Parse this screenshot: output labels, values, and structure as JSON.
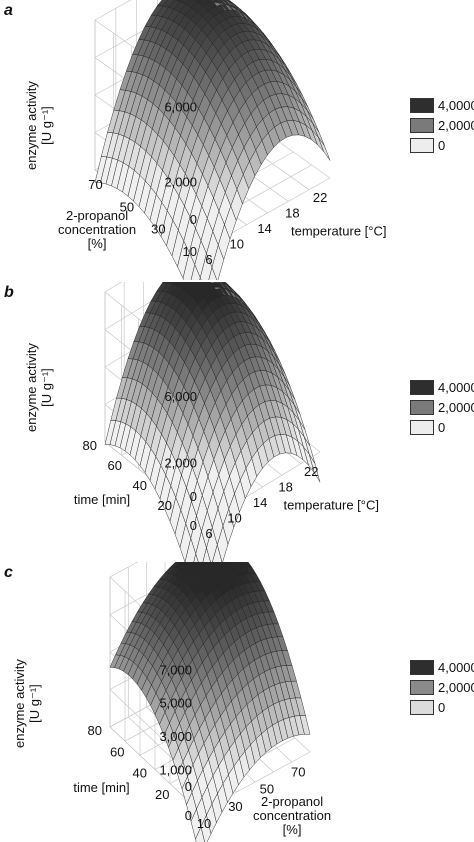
{
  "chart_data": [
    {
      "type": "surface",
      "panel_label": "a",
      "xlabel": "temperature [°C]",
      "ylabel_line1": "enzyme activity",
      "ylabel_line2": "[U g⁻¹]",
      "zlabel_line1": "2-propanol",
      "zlabel_line2": "concentration",
      "zlabel_line3": "[%]",
      "x_ticks": [
        "6",
        "10",
        "14",
        "18",
        "22"
      ],
      "z_ticks": [
        "10",
        "30",
        "50",
        "70"
      ],
      "y_ticks": [
        "0",
        "2,000",
        "6,000"
      ],
      "x_range": [
        6,
        24
      ],
      "depth_range": [
        10,
        80
      ],
      "z_range": [
        -1500,
        6500
      ],
      "surface": {
        "peak_x": 17.5,
        "peak_depth": 62,
        "peak_value": 6300,
        "curv_x": 60,
        "curv_depth": 1.6
      },
      "legend": [
        {
          "label": "4,0000",
          "color": "#2e2e2e"
        },
        {
          "label": "2,0000",
          "color": "#7a7a7a"
        },
        {
          "label": "0",
          "color": "#ededed"
        }
      ]
    },
    {
      "type": "surface",
      "panel_label": "b",
      "xlabel": "temperature [°C]",
      "ylabel_line1": "enzyme activity",
      "ylabel_line2": "[U g⁻¹]",
      "zlabel_line1": "time [min]",
      "zlabel_line2": "",
      "zlabel_line3": "",
      "x_ticks": [
        "6",
        "10",
        "14",
        "18",
        "22"
      ],
      "z_ticks": [
        "0",
        "20",
        "40",
        "60",
        "80"
      ],
      "y_ticks": [
        "0",
        "2,000",
        "6,000"
      ],
      "x_range": [
        6,
        24
      ],
      "depth_range": [
        0,
        80
      ],
      "z_range": [
        -1500,
        7500
      ],
      "surface": {
        "peak_x": 17,
        "peak_depth": 62,
        "peak_value": 6800,
        "curv_x": 65,
        "curv_depth": 1.8
      },
      "legend": [
        {
          "label": "4,0000",
          "color": "#2e2e2e"
        },
        {
          "label": "2,0000",
          "color": "#7a7a7a"
        },
        {
          "label": "0",
          "color": "#ededed"
        }
      ]
    },
    {
      "type": "surface",
      "panel_label": "c",
      "xlabel": "2-propanol concentration [%]",
      "xlabel_line1": "2-propanol",
      "xlabel_line2": "concentration",
      "xlabel_line3": "[%]",
      "ylabel_line1": "enzyme activity",
      "ylabel_line2": "[U g⁻¹]",
      "zlabel_line1": "time [min]",
      "zlabel_line2": "",
      "zlabel_line3": "",
      "x_ticks": [
        "10",
        "30",
        "50",
        "70"
      ],
      "z_ticks": [
        "0",
        "20",
        "40",
        "60",
        "80"
      ],
      "y_ticks": [
        "0",
        "1,000",
        "3,000",
        "5,000",
        "7,000"
      ],
      "x_range": [
        10,
        80
      ],
      "depth_range": [
        0,
        80
      ],
      "z_range": [
        -1500,
        7500
      ],
      "surface": {
        "peak_x": 62,
        "peak_depth": 62,
        "peak_value": 7000,
        "curv_x": 1.6,
        "curv_depth": 1.8
      },
      "legend": [
        {
          "label": "4,0000",
          "color": "#2e2e2e"
        },
        {
          "label": "2,0000",
          "color": "#7a7a7a"
        },
        {
          "label": "0",
          "color": "#dcdcdc"
        }
      ]
    }
  ]
}
